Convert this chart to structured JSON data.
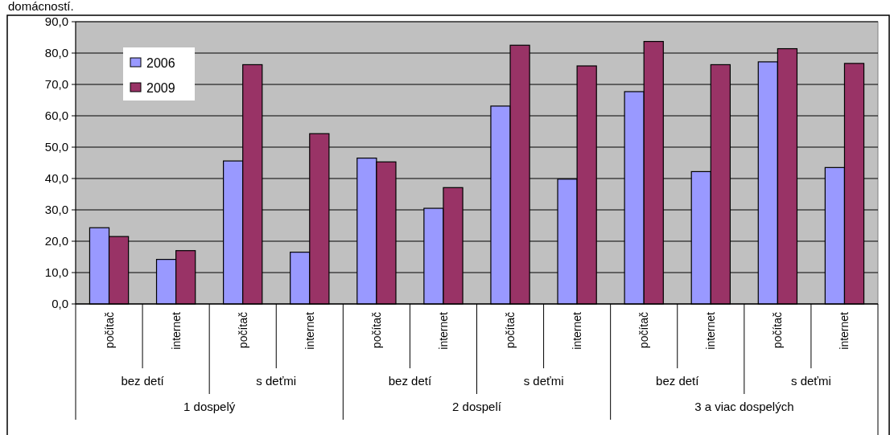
{
  "chart_data": {
    "type": "bar",
    "title": "domácností.",
    "categories": [
      "počítač",
      "internet",
      "počítač",
      "internet",
      "počítač",
      "internet",
      "počítač",
      "internet",
      "počítač",
      "internet",
      "počítač",
      "internet"
    ],
    "annotations": [
      "bez detí",
      "s deťmi",
      "bez detí",
      "s deťmi",
      "bez detí",
      "s deťmi",
      "1 dospelý",
      "2 dospelí",
      "3 a viac dospelých"
    ],
    "series": [
      {
        "name": "2006",
        "color": "#9999ff",
        "values": [
          24.3,
          14.2,
          45.6,
          16.5,
          46.5,
          30.5,
          63.1,
          39.8,
          67.7,
          42.2,
          77.2,
          43.5
        ]
      },
      {
        "name": "2009",
        "color": "#993366",
        "values": [
          21.5,
          17.0,
          76.3,
          54.3,
          45.3,
          37.1,
          82.5,
          75.9,
          83.7,
          76.3,
          81.4,
          76.7
        ]
      }
    ],
    "ylim": [
      0,
      90
    ],
    "yticks": [
      {
        "value": 0,
        "label": "0,0"
      },
      {
        "value": 10,
        "label": "10,0"
      },
      {
        "value": 20,
        "label": "20,0"
      },
      {
        "value": 30,
        "label": "30,0"
      },
      {
        "value": 40,
        "label": "40,0"
      },
      {
        "value": 50,
        "label": "50,0"
      },
      {
        "value": 60,
        "label": "60,0"
      },
      {
        "value": 70,
        "label": "70,0"
      },
      {
        "value": 80,
        "label": "80,0"
      },
      {
        "value": 90,
        "label": "90,0"
      }
    ],
    "grid": "y",
    "legend": "top left"
  }
}
